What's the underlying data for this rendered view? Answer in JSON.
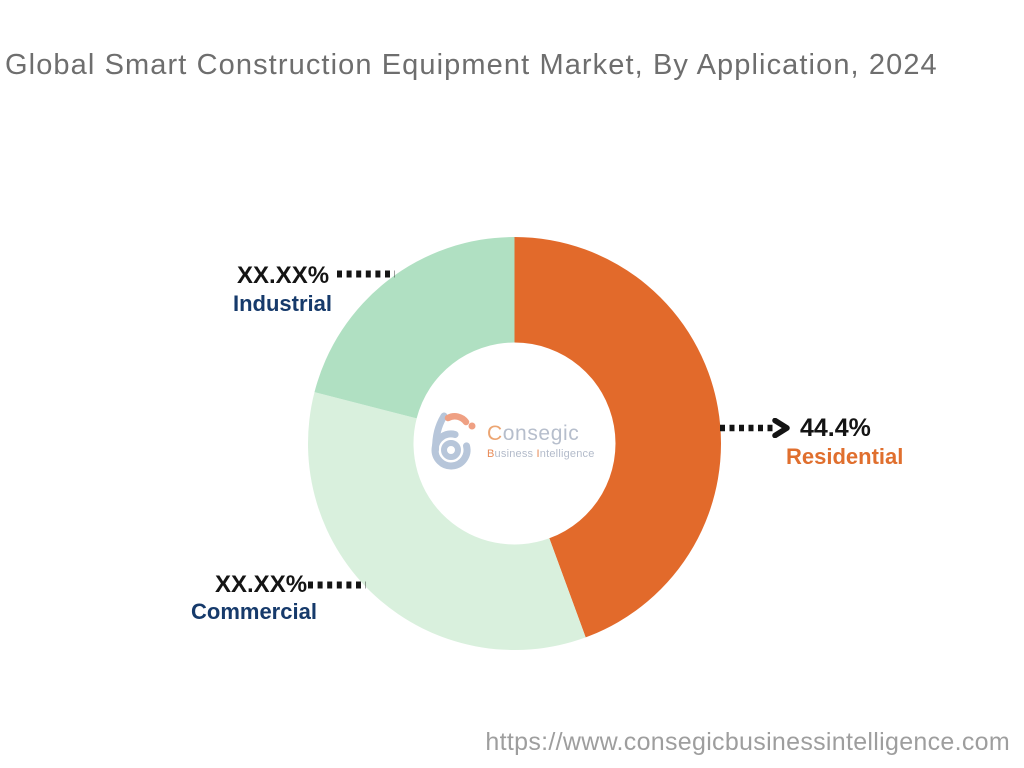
{
  "title": "Global Smart Construction Equipment Market, By Application, 2024",
  "footer": {
    "url": "https://www.consegicbusinessintelligence.com"
  },
  "watermark_logo": {
    "icon": "consegic-b-mark",
    "brand_first_letter": "C",
    "brand_rest": "onsegic",
    "tagline_first_letter": "B",
    "tagline_word1_rest": "usiness",
    "tagline_second_letter": "I",
    "tagline_word2_rest": "ntelligence"
  },
  "theme": {
    "title_color": "#6E6E6E",
    "url_color": "#9E9E9E",
    "value_text_color": "#141414",
    "connector_color": "#141414",
    "navy_label_color": "#163A6B",
    "orange_label_color": "#E06F2E",
    "logo_blue": "#B7C6DA",
    "logo_salmon": "#EFA083",
    "background": "#FFFFFF"
  },
  "chart_data": {
    "type": "pie",
    "donut": true,
    "title": "Global Smart Construction Equipment Market, By Application, 2024",
    "start_angle_deg": 0,
    "direction": "clockwise",
    "outer_radius_px": 206.5,
    "inner_radius_px": 101,
    "legend_position": "callouts",
    "segments": [
      {
        "label": "Residential",
        "display_value": "44.4%",
        "value_pct_est": 44.4,
        "color": "#E26A2B",
        "label_color": "#E06F2E",
        "callout": "dotted-arrow-right"
      },
      {
        "label": "Commercial",
        "display_value": "XX.XX%",
        "value_pct_est": 34.6,
        "color": "#D9F0DD",
        "label_color": "#163A6B",
        "callout": "dotted-left"
      },
      {
        "label": "Industrial",
        "display_value": "XX.XX%",
        "value_pct_est": 21.0,
        "color": "#B0E0C2",
        "label_color": "#163A6B",
        "callout": "dotted-left"
      }
    ]
  }
}
